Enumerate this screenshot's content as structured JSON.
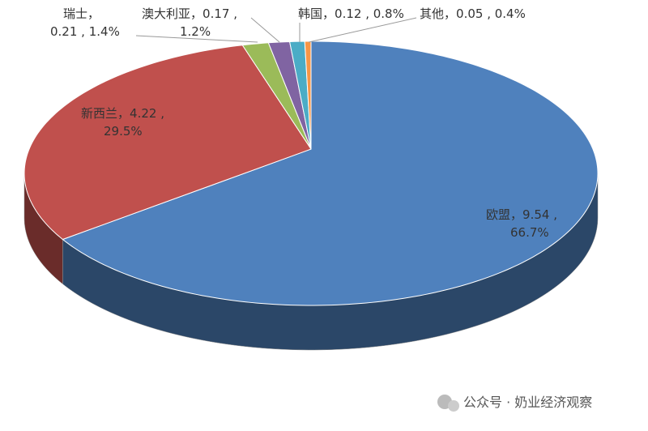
{
  "chart_data": {
    "type": "pie3d",
    "categories": [
      "欧盟",
      "新西兰",
      "瑞士",
      "澳大利亚",
      "韩国",
      "其他"
    ],
    "values": [
      9.54,
      4.22,
      0.21,
      0.17,
      0.12,
      0.05
    ],
    "percents": [
      66.7,
      29.5,
      1.4,
      1.2,
      0.8,
      0.4
    ],
    "percent_labels": [
      "66.7%",
      "29.5%",
      "1.4%",
      "1.2%",
      "0.8%",
      "0.4%"
    ],
    "label_separators": [
      "，",
      " , "
    ],
    "colors": [
      "#4f81bd",
      "#c0504d",
      "#9bbb59",
      "#8064a2",
      "#4bacc6",
      "#f79646"
    ]
  },
  "watermark": "公众号 · 奶业经济观察"
}
